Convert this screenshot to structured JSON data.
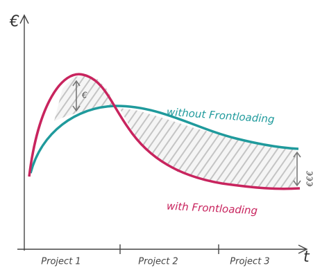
{
  "axes": {
    "y_label": "€",
    "x_label": "t"
  },
  "curves": {
    "without": "without Frontloading",
    "with": "with Frontloading"
  },
  "annotations": {
    "early_gap": "€",
    "late_gap": "€€€"
  },
  "phases": [
    "Project 1",
    "Project 2",
    "Project 3"
  ]
}
